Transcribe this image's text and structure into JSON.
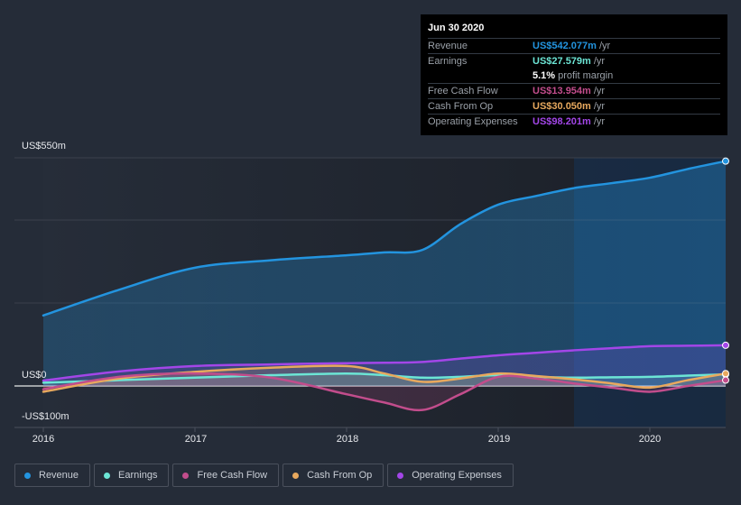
{
  "tooltip": {
    "date": "Jun 30 2020",
    "rows": [
      {
        "label": "Revenue",
        "value": "US$542.077m",
        "unit": "/yr",
        "color": "#2394df"
      },
      {
        "label": "Earnings",
        "value": "US$27.579m",
        "unit": "/yr",
        "color": "#6ce5d5"
      },
      {
        "label": "",
        "margin_value": "5.1%",
        "margin_label": "profit margin"
      },
      {
        "label": "Free Cash Flow",
        "value": "US$13.954m",
        "unit": "/yr",
        "color": "#c24d8c"
      },
      {
        "label": "Cash From Op",
        "value": "US$30.050m",
        "unit": "/yr",
        "color": "#e8a95e"
      },
      {
        "label": "Operating Expenses",
        "value": "US$98.201m",
        "unit": "/yr",
        "color": "#a346e8"
      }
    ]
  },
  "legend": [
    {
      "label": "Revenue",
      "color": "#2394df"
    },
    {
      "label": "Earnings",
      "color": "#6ce5d5"
    },
    {
      "label": "Free Cash Flow",
      "color": "#c24d8c"
    },
    {
      "label": "Cash From Op",
      "color": "#e8a95e"
    },
    {
      "label": "Operating Expenses",
      "color": "#a346e8"
    }
  ],
  "chart_data": {
    "type": "area",
    "title": "",
    "xlabel": "",
    "ylabel": "",
    "y_tick_labels": [
      {
        "value": 550,
        "label": "US$550m"
      },
      {
        "value": 0,
        "label": "US$0"
      },
      {
        "value": -100,
        "label": "-US$100m"
      }
    ],
    "gridlines": [
      550,
      400,
      200,
      0
    ],
    "ylim": [
      -100,
      550
    ],
    "xlim": [
      2016.0,
      2020.5
    ],
    "x_tick_labels": [
      "2016",
      "2017",
      "2018",
      "2019",
      "2020"
    ],
    "x_ticks": [
      2016,
      2017,
      2018,
      2019,
      2020
    ],
    "highlight_from": 2019.5,
    "x": [
      2016.0,
      2016.5,
      2017.0,
      2017.5,
      2018.0,
      2018.25,
      2018.5,
      2018.75,
      2019.0,
      2019.25,
      2019.5,
      2019.75,
      2020.0,
      2020.25,
      2020.5
    ],
    "series": [
      {
        "name": "Revenue",
        "color": "#2394df",
        "values": [
          170,
          232,
          285,
          303,
          315,
          322,
          328,
          390,
          437,
          458,
          477,
          489,
          502,
          523,
          542
        ]
      },
      {
        "name": "Operating Expenses",
        "color": "#a346e8",
        "values": [
          13,
          35,
          48,
          52,
          55,
          56,
          58,
          66,
          74,
          80,
          86,
          91,
          96,
          97,
          98
        ]
      },
      {
        "name": "Earnings",
        "color": "#6ce5d5",
        "values": [
          8,
          14,
          20,
          26,
          30,
          26,
          20,
          22,
          26,
          22,
          20,
          21,
          22,
          25,
          28
        ]
      },
      {
        "name": "Cash From Op",
        "color": "#e8a95e",
        "values": [
          -14,
          18,
          34,
          44,
          48,
          30,
          10,
          18,
          30,
          24,
          16,
          6,
          -4,
          14,
          30
        ]
      },
      {
        "name": "Free Cash Flow",
        "color": "#c24d8c",
        "values": [
          -8,
          22,
          30,
          20,
          -20,
          -40,
          -58,
          -20,
          22,
          18,
          6,
          -4,
          -14,
          0,
          14
        ]
      }
    ]
  }
}
